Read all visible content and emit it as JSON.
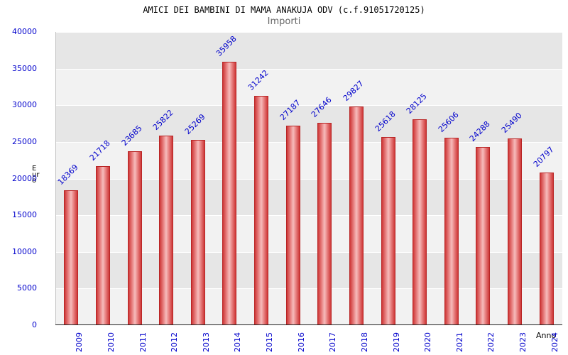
{
  "chart_data": {
    "type": "bar",
    "title": "AMICI DEI BAMBINI DI MAMA ANAKUJA ODV (c.f.91051720125)",
    "subtitle": "Importi",
    "xlabel": "Anno",
    "ylabel": "Euro",
    "categories": [
      "2009",
      "2010",
      "2011",
      "2012",
      "2013",
      "2014",
      "2015",
      "2016",
      "2017",
      "2018",
      "2019",
      "2020",
      "2021",
      "2022",
      "2023",
      "2024"
    ],
    "values": [
      18369,
      21718,
      23685,
      25822,
      25269,
      35958,
      31242,
      27187,
      27646,
      29827,
      25618,
      28125,
      25606,
      24288,
      25490,
      20797
    ],
    "ylim": [
      0,
      40000
    ],
    "ytick_step": 5000,
    "legend": "none",
    "grid": "horizontal",
    "colors": {
      "bar_edge": "#b92525",
      "bar_dark": "#cd3737",
      "bar_light": "#f6bcbc",
      "axis_label_blue": "#0000cc",
      "band_dark": "#e6e6e6",
      "band_light": "#f2f2f2",
      "gridline": "#ffffff",
      "text_black": "#000000"
    }
  }
}
